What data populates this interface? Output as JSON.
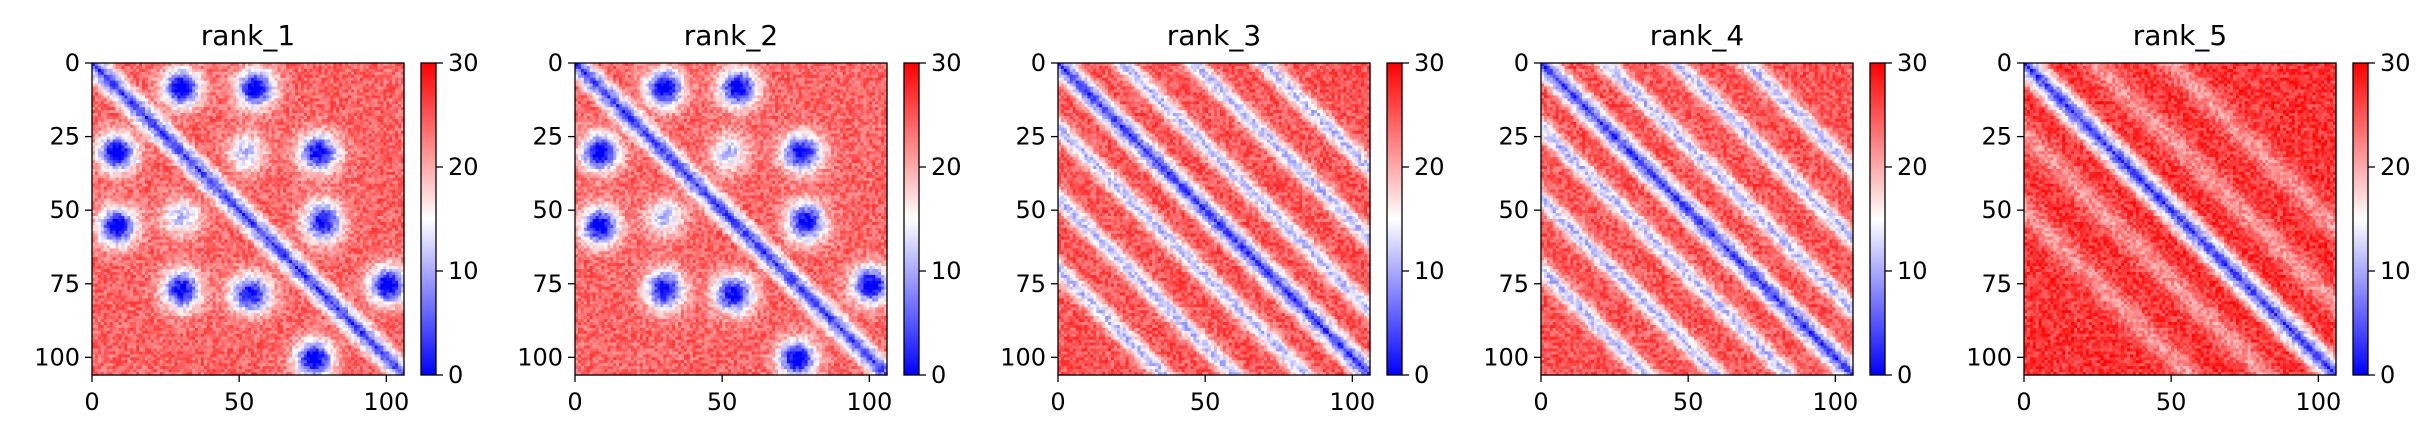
{
  "chart_data": [
    {
      "type": "heatmap",
      "title": "rank_1",
      "pattern": "contacts",
      "x_ticks": [
        "0",
        "50",
        "100"
      ],
      "y_ticks": [
        "0",
        "25",
        "50",
        "75",
        "100"
      ],
      "xlim": [
        0,
        106
      ],
      "ylim": [
        106,
        0
      ],
      "colorbar": {
        "ticks": [
          "0",
          "10",
          "20",
          "30"
        ],
        "range": [
          0,
          30
        ],
        "colormap": "bwr"
      }
    },
    {
      "type": "heatmap",
      "title": "rank_2",
      "pattern": "contacts",
      "x_ticks": [
        "0",
        "50",
        "100"
      ],
      "y_ticks": [
        "0",
        "25",
        "50",
        "75",
        "100"
      ],
      "xlim": [
        0,
        106
      ],
      "ylim": [
        106,
        0
      ],
      "colorbar": {
        "ticks": [
          "0",
          "10",
          "20",
          "30"
        ],
        "range": [
          0,
          30
        ],
        "colormap": "bwr"
      }
    },
    {
      "type": "heatmap",
      "title": "rank_3",
      "pattern": "bands",
      "x_ticks": [
        "0",
        "50",
        "100"
      ],
      "y_ticks": [
        "0",
        "25",
        "50",
        "75",
        "100"
      ],
      "xlim": [
        0,
        106
      ],
      "ylim": [
        106,
        0
      ],
      "colorbar": {
        "ticks": [
          "0",
          "10",
          "20",
          "30"
        ],
        "range": [
          0,
          30
        ],
        "colormap": "bwr"
      }
    },
    {
      "type": "heatmap",
      "title": "rank_4",
      "pattern": "bands",
      "x_ticks": [
        "0",
        "50",
        "100"
      ],
      "y_ticks": [
        "0",
        "25",
        "50",
        "75",
        "100"
      ],
      "xlim": [
        0,
        106
      ],
      "ylim": [
        106,
        0
      ],
      "colorbar": {
        "ticks": [
          "0",
          "10",
          "20",
          "30"
        ],
        "range": [
          0,
          30
        ],
        "colormap": "bwr"
      }
    },
    {
      "type": "heatmap",
      "title": "rank_5",
      "pattern": "diagonal",
      "x_ticks": [
        "0",
        "50",
        "100"
      ],
      "y_ticks": [
        "0",
        "25",
        "50",
        "75",
        "100"
      ],
      "xlim": [
        0,
        106
      ],
      "ylim": [
        106,
        0
      ],
      "colorbar": {
        "ticks": [
          "0",
          "10",
          "20",
          "30"
        ],
        "range": [
          0,
          30
        ],
        "colormap": "bwr"
      }
    }
  ],
  "colors": {
    "low": "#0000ff",
    "mid": "#ffffff",
    "high": "#ff0000"
  }
}
